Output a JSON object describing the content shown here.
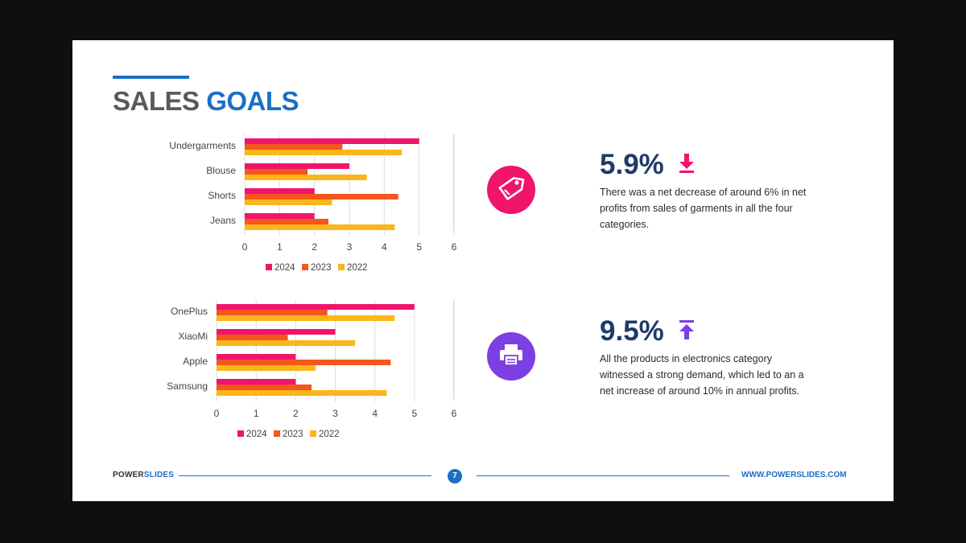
{
  "title": {
    "word1": "SALES",
    "word2": "GOALS"
  },
  "chart_data": [
    {
      "type": "bar",
      "orientation": "horizontal",
      "categories": [
        "Undergarments",
        "Blouse",
        "Shorts",
        "Jeans"
      ],
      "series": [
        {
          "name": "2024",
          "values": [
            5.0,
            3.0,
            2.0,
            2.0
          ]
        },
        {
          "name": "2023",
          "values": [
            2.8,
            1.8,
            4.4,
            2.4
          ]
        },
        {
          "name": "2022",
          "values": [
            4.5,
            3.5,
            2.5,
            4.3
          ]
        }
      ],
      "xlim": [
        0,
        6
      ],
      "xticks": [
        0,
        1,
        2,
        3,
        4,
        5,
        6
      ],
      "grid": true,
      "legend": "bottom"
    },
    {
      "type": "bar",
      "orientation": "horizontal",
      "categories": [
        "OnePlus",
        "XiaoMi",
        "Apple",
        "Samsung"
      ],
      "series": [
        {
          "name": "2024",
          "values": [
            5.0,
            3.0,
            2.0,
            2.0
          ]
        },
        {
          "name": "2023",
          "values": [
            2.8,
            1.8,
            4.4,
            2.4
          ]
        },
        {
          "name": "2022",
          "values": [
            4.5,
            3.5,
            2.5,
            4.3
          ]
        }
      ],
      "xlim": [
        0,
        6
      ],
      "xticks": [
        0,
        1,
        2,
        3,
        4,
        5,
        6
      ],
      "grid": true,
      "legend": "bottom"
    }
  ],
  "colors": {
    "s2024": "#f0146c",
    "s2023": "#f4561e",
    "s2022": "#fbb61a",
    "accent": "#1a6fc4",
    "pink": "#f0146c",
    "purple": "#7b3fe4"
  },
  "stats": [
    {
      "value": "5.9%",
      "direction": "down",
      "icon": "price-tag-icon",
      "arrow_icon": "arrow-down-to-line-icon",
      "text": "There was a net decrease of around 6% in net profits from sales of garments in all the four categories."
    },
    {
      "value": "9.5%",
      "direction": "up",
      "icon": "printer-icon",
      "arrow_icon": "arrow-up-from-line-icon",
      "text": "All the products in electronics category witnessed a strong demand, which led to an a net increase of around 10% in annual profits."
    }
  ],
  "footer": {
    "brand_a": "POWER",
    "brand_b": "SLIDES",
    "page": "7",
    "url": "WWW.POWERSLIDES.COM"
  }
}
